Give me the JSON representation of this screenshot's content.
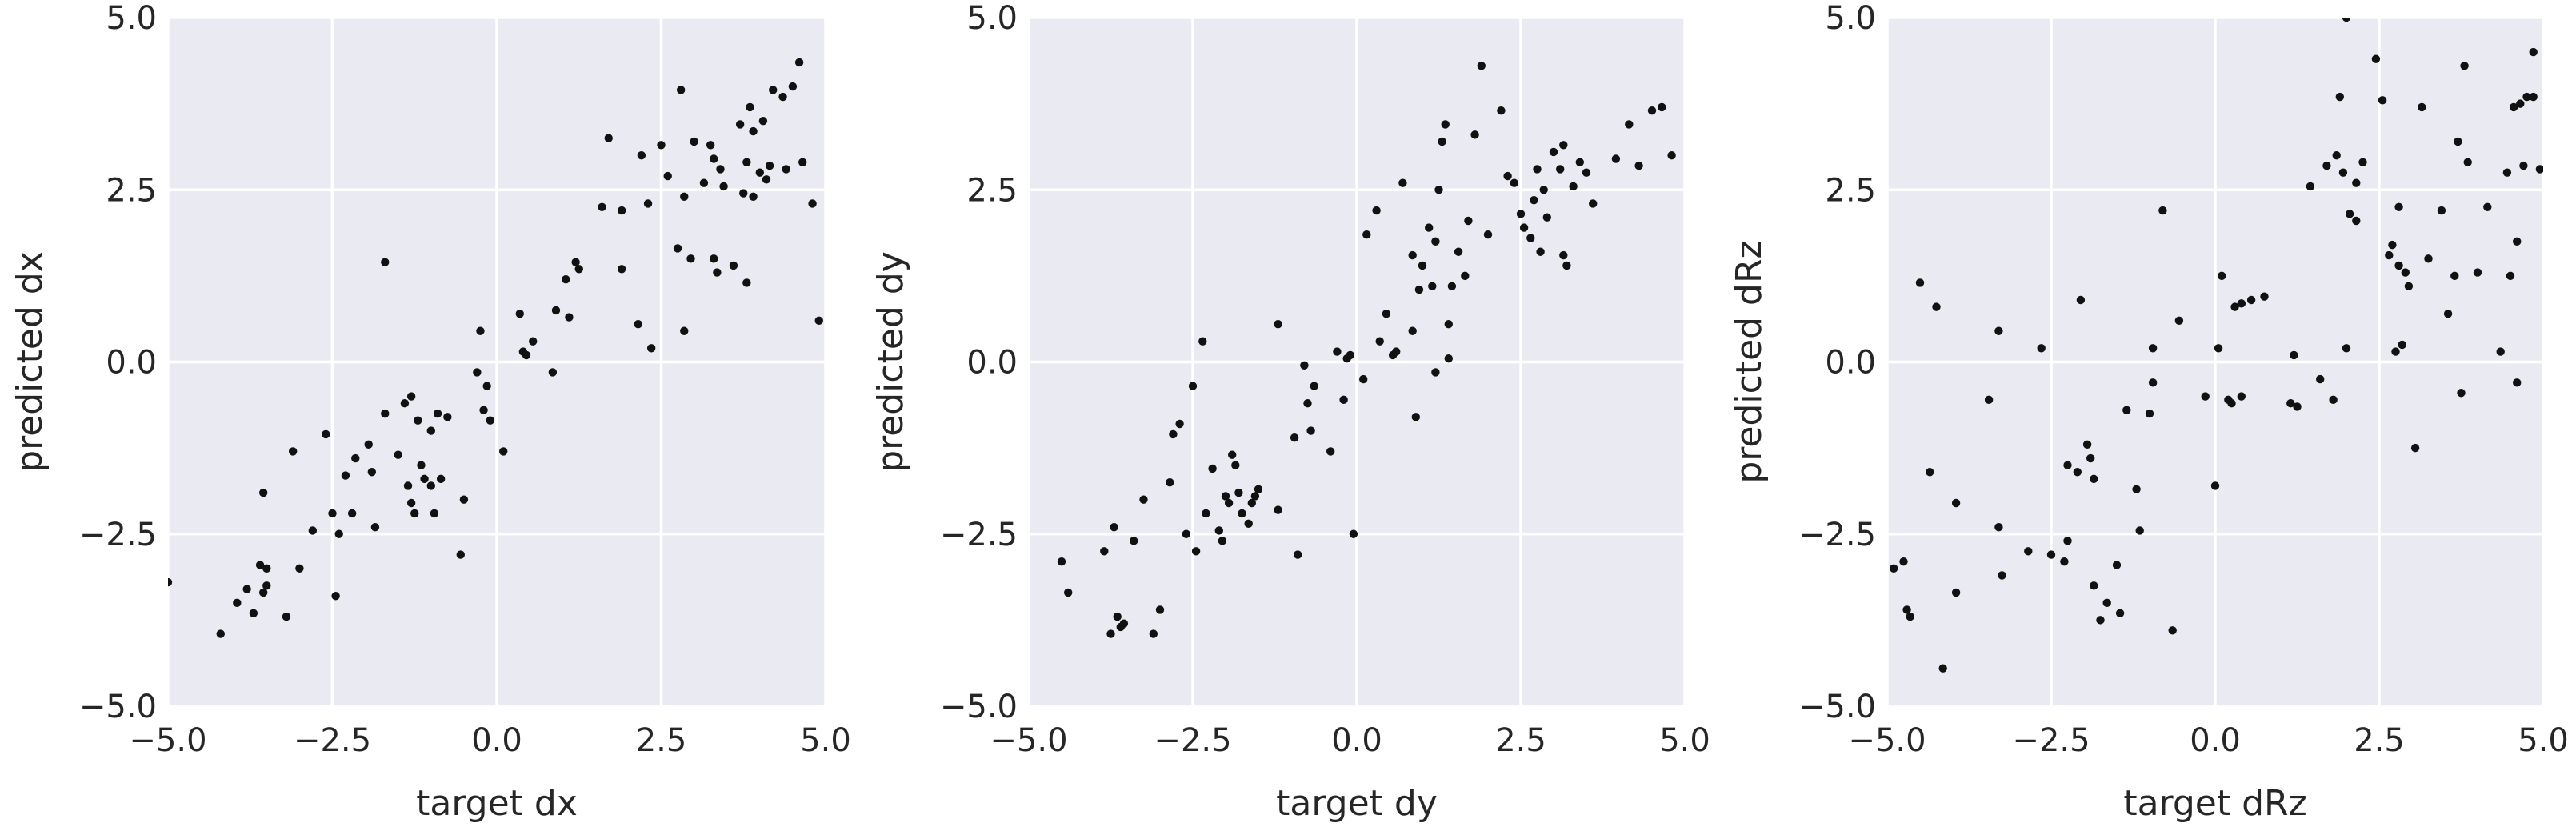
{
  "chart_data": [
    {
      "type": "scatter",
      "xlabel": "target dx",
      "ylabel": "predicted dx",
      "xlim": [
        -5.0,
        5.0
      ],
      "ylim": [
        -5.0,
        5.0
      ],
      "xticks": [
        "−5.0",
        "−2.5",
        "0.0",
        "2.5",
        "5.0"
      ],
      "yticks": [
        "−5.0",
        "−2.5",
        "0.0",
        "2.5",
        "5.0"
      ],
      "grid": true,
      "marker_color": "#111111",
      "background_color": "#eaeaf2",
      "points": [
        [
          -5.0,
          -3.2
        ],
        [
          -4.2,
          -3.95
        ],
        [
          -3.95,
          -3.5
        ],
        [
          -3.8,
          -3.3
        ],
        [
          -3.7,
          -3.65
        ],
        [
          -3.6,
          -2.95
        ],
        [
          -3.55,
          -3.35
        ],
        [
          -3.5,
          -3.0
        ],
        [
          -3.5,
          -3.25
        ],
        [
          -3.55,
          -1.9
        ],
        [
          -3.2,
          -3.7
        ],
        [
          -3.1,
          -1.3
        ],
        [
          -3.0,
          -3.0
        ],
        [
          -2.8,
          -2.45
        ],
        [
          -2.6,
          -1.05
        ],
        [
          -2.5,
          -2.2
        ],
        [
          -2.45,
          -3.4
        ],
        [
          -2.4,
          -2.5
        ],
        [
          -2.3,
          -1.65
        ],
        [
          -2.2,
          -2.2
        ],
        [
          -2.15,
          -1.4
        ],
        [
          -1.95,
          -1.2
        ],
        [
          -1.9,
          -1.6
        ],
        [
          -1.85,
          -2.4
        ],
        [
          -1.7,
          1.45
        ],
        [
          -1.7,
          -0.75
        ],
        [
          -1.5,
          -1.35
        ],
        [
          -1.4,
          -0.6
        ],
        [
          -1.35,
          -1.8
        ],
        [
          -1.3,
          -0.5
        ],
        [
          -1.3,
          -2.05
        ],
        [
          -1.25,
          -2.2
        ],
        [
          -1.2,
          -0.85
        ],
        [
          -1.15,
          -1.5
        ],
        [
          -1.1,
          -1.7
        ],
        [
          -1.0,
          -1.0
        ],
        [
          -1.0,
          -1.8
        ],
        [
          -0.95,
          -2.2
        ],
        [
          -0.9,
          -0.75
        ],
        [
          -0.85,
          -1.7
        ],
        [
          -0.75,
          -0.8
        ],
        [
          -0.55,
          -2.8
        ],
        [
          -0.5,
          -2.0
        ],
        [
          -0.3,
          -0.15
        ],
        [
          -0.25,
          0.45
        ],
        [
          -0.2,
          -0.7
        ],
        [
          -0.15,
          -0.35
        ],
        [
          -0.1,
          -0.85
        ],
        [
          0.1,
          -1.3
        ],
        [
          0.35,
          0.7
        ],
        [
          0.4,
          0.15
        ],
        [
          0.45,
          0.1
        ],
        [
          0.55,
          0.3
        ],
        [
          0.85,
          -0.15
        ],
        [
          0.9,
          0.75
        ],
        [
          1.05,
          1.2
        ],
        [
          1.1,
          0.65
        ],
        [
          1.2,
          1.45
        ],
        [
          1.25,
          1.35
        ],
        [
          1.6,
          2.25
        ],
        [
          1.7,
          3.25
        ],
        [
          1.9,
          1.35
        ],
        [
          1.9,
          2.2
        ],
        [
          2.15,
          0.55
        ],
        [
          2.2,
          3.0
        ],
        [
          2.3,
          2.3
        ],
        [
          2.35,
          0.2
        ],
        [
          2.5,
          3.15
        ],
        [
          2.6,
          2.7
        ],
        [
          2.75,
          1.65
        ],
        [
          2.8,
          3.95
        ],
        [
          2.85,
          0.45
        ],
        [
          2.85,
          2.4
        ],
        [
          2.95,
          1.5
        ],
        [
          3.0,
          3.2
        ],
        [
          3.15,
          2.6
        ],
        [
          3.25,
          3.15
        ],
        [
          3.3,
          1.5
        ],
        [
          3.3,
          2.95
        ],
        [
          3.35,
          1.3
        ],
        [
          3.4,
          2.8
        ],
        [
          3.45,
          2.55
        ],
        [
          3.6,
          1.4
        ],
        [
          3.7,
          3.45
        ],
        [
          3.75,
          2.45
        ],
        [
          3.8,
          1.15
        ],
        [
          3.8,
          2.9
        ],
        [
          3.85,
          3.7
        ],
        [
          3.9,
          3.35
        ],
        [
          3.9,
          2.4
        ],
        [
          4.0,
          2.75
        ],
        [
          4.05,
          3.5
        ],
        [
          4.1,
          2.65
        ],
        [
          4.15,
          2.85
        ],
        [
          4.2,
          3.95
        ],
        [
          4.35,
          3.85
        ],
        [
          4.4,
          2.8
        ],
        [
          4.5,
          4.0
        ],
        [
          4.6,
          4.35
        ],
        [
          4.65,
          2.9
        ],
        [
          4.8,
          2.3
        ],
        [
          4.9,
          0.6
        ]
      ]
    },
    {
      "type": "scatter",
      "xlabel": "target dy",
      "ylabel": "predicted dy",
      "xlim": [
        -5.0,
        5.0
      ],
      "ylim": [
        -5.0,
        5.0
      ],
      "xticks": [
        "−5.0",
        "−2.5",
        "0.0",
        "2.5",
        "5.0"
      ],
      "yticks": [
        "−5.0",
        "−2.5",
        "0.0",
        "2.5",
        "5.0"
      ],
      "grid": true,
      "marker_color": "#111111",
      "background_color": "#eaeaf2",
      "points": [
        [
          -4.5,
          -2.9
        ],
        [
          -4.4,
          -3.35
        ],
        [
          -3.85,
          -2.75
        ],
        [
          -3.75,
          -3.95
        ],
        [
          -3.7,
          -2.4
        ],
        [
          -3.65,
          -3.7
        ],
        [
          -3.6,
          -3.85
        ],
        [
          -3.55,
          -3.8
        ],
        [
          -3.4,
          -2.6
        ],
        [
          -3.25,
          -2.0
        ],
        [
          -3.1,
          -3.95
        ],
        [
          -3.0,
          -3.6
        ],
        [
          -2.85,
          -1.75
        ],
        [
          -2.8,
          -1.05
        ],
        [
          -2.7,
          -0.9
        ],
        [
          -2.6,
          -2.5
        ],
        [
          -2.5,
          -0.35
        ],
        [
          -2.45,
          -2.75
        ],
        [
          -2.35,
          0.3
        ],
        [
          -2.3,
          -2.2
        ],
        [
          -2.2,
          -1.55
        ],
        [
          -2.1,
          -2.45
        ],
        [
          -2.05,
          -2.6
        ],
        [
          -2.0,
          -1.95
        ],
        [
          -1.95,
          -2.05
        ],
        [
          -1.9,
          -1.35
        ],
        [
          -1.85,
          -1.5
        ],
        [
          -1.8,
          -1.9
        ],
        [
          -1.75,
          -2.2
        ],
        [
          -1.65,
          -2.35
        ],
        [
          -1.6,
          -2.05
        ],
        [
          -1.55,
          -1.95
        ],
        [
          -1.5,
          -1.85
        ],
        [
          -1.2,
          -2.15
        ],
        [
          -1.2,
          0.55
        ],
        [
          -0.95,
          -1.1
        ],
        [
          -0.9,
          -2.8
        ],
        [
          -0.8,
          -0.05
        ],
        [
          -0.75,
          -0.6
        ],
        [
          -0.7,
          -1.0
        ],
        [
          -0.65,
          -0.35
        ],
        [
          -0.4,
          -1.3
        ],
        [
          -0.3,
          0.15
        ],
        [
          -0.2,
          -0.55
        ],
        [
          -0.15,
          0.05
        ],
        [
          -0.1,
          0.1
        ],
        [
          -0.05,
          -2.5
        ],
        [
          0.1,
          -0.25
        ],
        [
          0.15,
          1.85
        ],
        [
          0.3,
          2.2
        ],
        [
          0.35,
          0.3
        ],
        [
          0.45,
          0.7
        ],
        [
          0.55,
          0.1
        ],
        [
          0.6,
          0.15
        ],
        [
          0.7,
          2.6
        ],
        [
          0.85,
          0.45
        ],
        [
          0.85,
          1.55
        ],
        [
          0.9,
          -0.8
        ],
        [
          0.95,
          1.05
        ],
        [
          1.0,
          1.4
        ],
        [
          1.1,
          1.95
        ],
        [
          1.15,
          1.1
        ],
        [
          1.2,
          1.75
        ],
        [
          1.2,
          -0.15
        ],
        [
          1.25,
          2.5
        ],
        [
          1.3,
          3.2
        ],
        [
          1.35,
          3.45
        ],
        [
          1.4,
          0.05
        ],
        [
          1.4,
          0.55
        ],
        [
          1.45,
          1.1
        ],
        [
          1.55,
          1.6
        ],
        [
          1.65,
          1.25
        ],
        [
          1.7,
          2.05
        ],
        [
          1.8,
          3.3
        ],
        [
          1.9,
          4.3
        ],
        [
          2.0,
          1.85
        ],
        [
          2.2,
          3.65
        ],
        [
          2.3,
          2.7
        ],
        [
          2.4,
          2.6
        ],
        [
          2.5,
          2.15
        ],
        [
          2.55,
          1.95
        ],
        [
          2.65,
          1.8
        ],
        [
          2.7,
          2.35
        ],
        [
          2.75,
          2.8
        ],
        [
          2.8,
          1.6
        ],
        [
          2.85,
          2.5
        ],
        [
          2.9,
          2.1
        ],
        [
          3.0,
          3.05
        ],
        [
          3.1,
          2.8
        ],
        [
          3.15,
          3.15
        ],
        [
          3.15,
          1.55
        ],
        [
          3.2,
          1.4
        ],
        [
          3.3,
          2.55
        ],
        [
          3.4,
          2.9
        ],
        [
          3.5,
          2.75
        ],
        [
          3.6,
          2.3
        ],
        [
          3.95,
          2.95
        ],
        [
          4.15,
          3.45
        ],
        [
          4.3,
          2.85
        ],
        [
          4.5,
          3.65
        ],
        [
          4.65,
          3.7
        ],
        [
          4.8,
          3.0
        ]
      ]
    },
    {
      "type": "scatter",
      "xlabel": "target dRz",
      "ylabel": "predicted dRz",
      "xlim": [
        -5.0,
        5.0
      ],
      "ylim": [
        -5.0,
        5.0
      ],
      "xticks": [
        "−5.0",
        "−2.5",
        "0.0",
        "2.5",
        "5.0"
      ],
      "yticks": [
        "−5.0",
        "−2.5",
        "0.0",
        "2.5",
        "5.0"
      ],
      "grid": true,
      "marker_color": "#111111",
      "background_color": "#eaeaf2",
      "points": [
        [
          -4.9,
          -3.0
        ],
        [
          -4.75,
          -2.9
        ],
        [
          -4.7,
          -3.6
        ],
        [
          -4.65,
          -3.7
        ],
        [
          -4.5,
          1.15
        ],
        [
          -4.35,
          -1.6
        ],
        [
          -4.25,
          0.8
        ],
        [
          -4.15,
          -4.45
        ],
        [
          -3.95,
          -3.35
        ],
        [
          -3.95,
          -2.05
        ],
        [
          -3.45,
          -0.55
        ],
        [
          -3.3,
          0.45
        ],
        [
          -3.3,
          -2.4
        ],
        [
          -3.25,
          -3.1
        ],
        [
          -2.85,
          -2.75
        ],
        [
          -2.65,
          0.2
        ],
        [
          -2.5,
          -2.8
        ],
        [
          -2.3,
          -2.9
        ],
        [
          -2.25,
          -1.5
        ],
        [
          -2.25,
          -2.6
        ],
        [
          -2.1,
          -1.6
        ],
        [
          -2.05,
          0.9
        ],
        [
          -1.95,
          -1.2
        ],
        [
          -1.9,
          -1.4
        ],
        [
          -1.85,
          -3.25
        ],
        [
          -1.85,
          -1.7
        ],
        [
          -1.75,
          -3.75
        ],
        [
          -1.65,
          -3.5
        ],
        [
          -1.5,
          -2.95
        ],
        [
          -1.45,
          -3.65
        ],
        [
          -1.35,
          -0.7
        ],
        [
          -1.2,
          -1.85
        ],
        [
          -1.15,
          -2.45
        ],
        [
          -1.0,
          -0.75
        ],
        [
          -0.95,
          0.2
        ],
        [
          -0.95,
          -0.3
        ],
        [
          -0.8,
          2.2
        ],
        [
          -0.65,
          -3.9
        ],
        [
          -0.55,
          0.6
        ],
        [
          -0.15,
          -0.5
        ],
        [
          0.0,
          -1.8
        ],
        [
          0.05,
          0.2
        ],
        [
          0.1,
          1.25
        ],
        [
          0.2,
          -0.55
        ],
        [
          0.25,
          -0.6
        ],
        [
          0.3,
          0.8
        ],
        [
          0.4,
          0.85
        ],
        [
          0.4,
          -0.5
        ],
        [
          0.55,
          0.9
        ],
        [
          0.75,
          0.95
        ],
        [
          1.15,
          -0.6
        ],
        [
          1.2,
          0.1
        ],
        [
          1.25,
          -0.65
        ],
        [
          1.45,
          2.55
        ],
        [
          1.6,
          -0.25
        ],
        [
          1.7,
          2.85
        ],
        [
          1.8,
          -0.55
        ],
        [
          1.85,
          3.0
        ],
        [
          1.9,
          3.85
        ],
        [
          1.95,
          2.75
        ],
        [
          2.0,
          0.2
        ],
        [
          2.05,
          2.15
        ],
        [
          2.15,
          2.05
        ],
        [
          2.15,
          2.6
        ],
        [
          2.25,
          2.9
        ],
        [
          2.45,
          4.4
        ],
        [
          2.55,
          3.8
        ],
        [
          2.65,
          1.55
        ],
        [
          2.7,
          1.7
        ],
        [
          2.75,
          0.15
        ],
        [
          2.8,
          2.25
        ],
        [
          2.8,
          1.4
        ],
        [
          2.85,
          0.25
        ],
        [
          2.9,
          1.3
        ],
        [
          2.95,
          1.1
        ],
        [
          3.05,
          -1.25
        ],
        [
          3.15,
          3.7
        ],
        [
          3.25,
          1.5
        ],
        [
          3.45,
          2.2
        ],
        [
          3.55,
          0.7
        ],
        [
          3.65,
          1.25
        ],
        [
          3.7,
          3.2
        ],
        [
          3.75,
          -0.45
        ],
        [
          3.8,
          4.3
        ],
        [
          3.85,
          2.9
        ],
        [
          4.0,
          1.3
        ],
        [
          4.15,
          2.25
        ],
        [
          4.35,
          0.15
        ],
        [
          4.45,
          2.75
        ],
        [
          4.5,
          1.25
        ],
        [
          4.55,
          3.7
        ],
        [
          4.6,
          -0.3
        ],
        [
          4.6,
          1.75
        ],
        [
          4.65,
          3.75
        ],
        [
          4.7,
          2.85
        ],
        [
          4.75,
          3.85
        ],
        [
          4.85,
          3.85
        ],
        [
          4.85,
          4.5
        ],
        [
          4.95,
          2.8
        ],
        [
          2.0,
          5.0
        ]
      ]
    }
  ]
}
